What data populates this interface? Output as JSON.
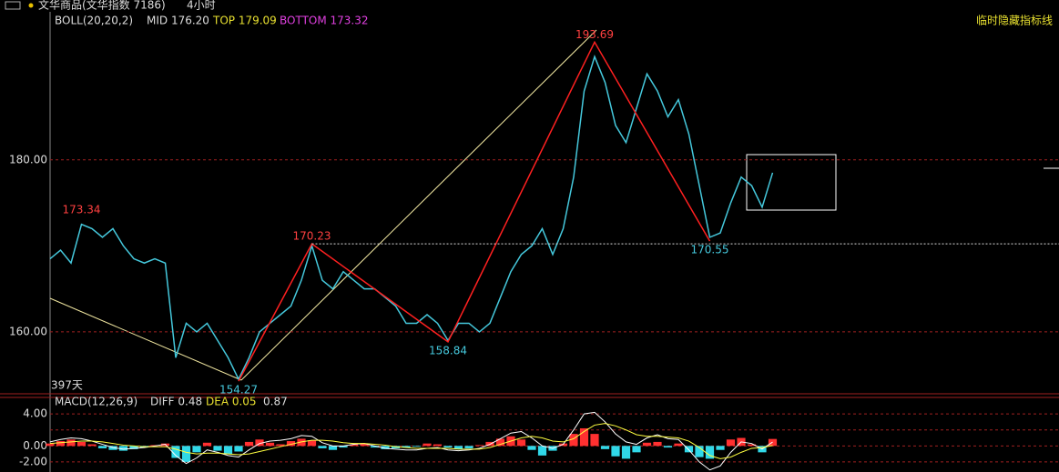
{
  "chart_data": {
    "type": "line",
    "instrument": "文华商品(文华指数 7186)",
    "period": "4小时",
    "indicator": {
      "name": "BOLL(20,20,2)",
      "mid": "MID 176.20",
      "top": "TOP 179.09",
      "bottom": "BOTTOM 173.32"
    },
    "hide_button": "临时隐藏指标线",
    "span_label": "397天",
    "categories": [
      null,
      null,
      null,
      null,
      null,
      null,
      null,
      null,
      null,
      null,
      null,
      null,
      null,
      null,
      null,
      null,
      null,
      null,
      null,
      null,
      null,
      null,
      null,
      null,
      null,
      null,
      null,
      null,
      null,
      null,
      null,
      null,
      null,
      null,
      null,
      null,
      null,
      null,
      null,
      null,
      null,
      null,
      null,
      null,
      null,
      null,
      null,
      null,
      null,
      null,
      null,
      null,
      null,
      null,
      null,
      null,
      null,
      null,
      null,
      null,
      null,
      null,
      null,
      null,
      null,
      null,
      null,
      null,
      null,
      null
    ],
    "series": [
      {
        "name": null,
        "color": "#45c8dc",
        "values": [
          168.5,
          169.5,
          168,
          172.5,
          172,
          171,
          172,
          170,
          168.5,
          168,
          168.5,
          168,
          157,
          161,
          160,
          161,
          159,
          157,
          154.5,
          157,
          160,
          161,
          162,
          163,
          166,
          170,
          166,
          165,
          167,
          166,
          165,
          165,
          164,
          163,
          161,
          161,
          162,
          161,
          159,
          161,
          161,
          160,
          161,
          164,
          167,
          169,
          170,
          172,
          169,
          172,
          178,
          188,
          192,
          189,
          184,
          182,
          186,
          190,
          188,
          185,
          187,
          183,
          177,
          171,
          171.5,
          175,
          178,
          177,
          174.5,
          178.5
        ]
      }
    ],
    "ylim": [
      152.8,
      197.0
    ],
    "yticks": [
      {
        "value": 160,
        "label": "160.00"
      },
      {
        "value": 180,
        "label": "180.00"
      }
    ],
    "grid": true,
    "high_label": {
      "index": 3,
      "value": 173.34,
      "color": "#ff4040"
    },
    "zigzag": {
      "color": "#ff2020",
      "points": [
        {
          "index": 18,
          "value": 154.27
        },
        {
          "index": 25,
          "value": 170.23
        },
        {
          "index": 38,
          "value": 158.84
        },
        {
          "index": 52,
          "value": 193.69
        },
        {
          "index": 63,
          "value": 170.55
        }
      ]
    },
    "macd": {
      "name": "MACD(12,26,9)",
      "diff_label": "DIFF 0.48",
      "dea_label": "DEA 0.05",
      "macd_label": "0.87",
      "ylim": [
        -3.26,
        6.06
      ],
      "yticks": [
        {
          "value": 4,
          "label": "4.00"
        },
        {
          "value": 2,
          "label": ""
        },
        {
          "value": 0,
          "label": "0.00"
        },
        {
          "value": -2,
          "label": "-2.00"
        }
      ],
      "hist": [
        0.3,
        0.6,
        0.8,
        0.5,
        0.2,
        -0.3,
        -0.5,
        -0.6,
        -0.4,
        -0.2,
        0.1,
        0.3,
        -1.5,
        -2.0,
        -0.8,
        0.4,
        -0.6,
        -1.0,
        -0.7,
        0.5,
        0.8,
        0.4,
        0.2,
        0.6,
        0.9,
        0.7,
        -0.3,
        -0.5,
        -0.2,
        0.2,
        0.3,
        -0.2,
        -0.4,
        -0.3,
        -0.2,
        -0.1,
        0.3,
        0.2,
        -0.2,
        -0.4,
        -0.3,
        0.1,
        0.5,
        0.9,
        1.2,
        0.8,
        -0.5,
        -1.2,
        -0.6,
        0.3,
        1.5,
        2.2,
        1.5,
        -0.4,
        -1.3,
        -1.6,
        -0.8,
        0.4,
        0.5,
        -0.2,
        0.3,
        -0.8,
        -1.4,
        -1.6,
        -0.5,
        0.8,
        1.0,
        0.2,
        -0.8,
        0.87
      ],
      "up_color": "#ff3030",
      "down_color": "#30d8e8",
      "diff": {
        "color": "#ffffff",
        "values": [
          0.5,
          0.8,
          1.0,
          0.9,
          0.6,
          0.2,
          -0.2,
          -0.4,
          -0.3,
          -0.2,
          0.0,
          0.2,
          -1.2,
          -2.2,
          -1.5,
          -0.5,
          -0.8,
          -1.2,
          -1.4,
          -0.5,
          0.3,
          0.6,
          0.7,
          0.9,
          1.3,
          1.2,
          0.4,
          0.0,
          0.0,
          0.2,
          0.3,
          0.0,
          -0.3,
          -0.4,
          -0.5,
          -0.5,
          -0.3,
          -0.2,
          -0.5,
          -0.6,
          -0.5,
          -0.3,
          0.2,
          0.9,
          1.6,
          1.8,
          1.0,
          0.0,
          -0.3,
          0.2,
          2.0,
          4.0,
          4.2,
          3.0,
          1.5,
          0.5,
          0.2,
          1.0,
          1.4,
          0.9,
          0.8,
          -0.5,
          -2.0,
          -3.0,
          -2.5,
          -0.8,
          0.5,
          0.3,
          -0.4,
          0.48
        ]
      },
      "dea": {
        "color": "#ffff40",
        "values": [
          0.3,
          0.4,
          0.5,
          0.6,
          0.6,
          0.5,
          0.3,
          0.1,
          0.0,
          -0.1,
          -0.1,
          -0.1,
          -0.4,
          -0.8,
          -1.0,
          -0.9,
          -0.9,
          -1.0,
          -1.1,
          -1.0,
          -0.7,
          -0.4,
          -0.1,
          0.2,
          0.5,
          0.7,
          0.7,
          0.6,
          0.4,
          0.3,
          0.3,
          0.2,
          0.1,
          -0.1,
          -0.2,
          -0.3,
          -0.3,
          -0.3,
          -0.3,
          -0.4,
          -0.4,
          -0.4,
          -0.2,
          0.2,
          0.6,
          1.0,
          1.2,
          1.0,
          0.6,
          0.5,
          0.9,
          1.8,
          2.6,
          2.8,
          2.5,
          2.0,
          1.4,
          1.2,
          1.2,
          1.1,
          1.0,
          0.6,
          -0.2,
          -1.2,
          -1.6,
          -1.4,
          -0.8,
          -0.3,
          -0.2,
          0.05
        ]
      }
    }
  }
}
